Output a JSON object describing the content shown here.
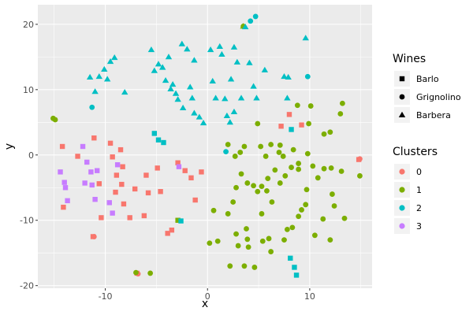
{
  "chart_data": {
    "type": "scatter",
    "xlabel": "x",
    "ylabel": "y",
    "xlim": [
      -16.6,
      16.1
    ],
    "ylim": [
      -20.4,
      23.0
    ],
    "x_ticks": [
      -10,
      0,
      10
    ],
    "y_ticks": [
      -20,
      -10,
      0,
      10,
      20
    ],
    "grid": true,
    "legend_placement": "right",
    "legends": {
      "shape": {
        "title": "Wines",
        "entries": [
          {
            "label": "Barlo",
            "shape": "square"
          },
          {
            "label": "Grignolino",
            "shape": "circle"
          },
          {
            "label": "Barbera",
            "shape": "triangle"
          }
        ]
      },
      "color": {
        "title": "Clusters",
        "entries": [
          {
            "label": "0",
            "color": "#F8766D"
          },
          {
            "label": "1",
            "color": "#7CAE00"
          },
          {
            "label": "2",
            "color": "#00BFC4"
          },
          {
            "label": "3",
            "color": "#C77CFF"
          }
        ]
      }
    },
    "points": [
      [
        "s",
        0,
        -14.2,
        1.3
      ],
      [
        "s",
        0,
        -14.1,
        -8.0
      ],
      [
        "s",
        0,
        -12.7,
        -0.2
      ],
      [
        "s",
        0,
        -11.1,
        2.6
      ],
      [
        "s",
        0,
        -10.6,
        -4.4
      ],
      [
        "s",
        0,
        -10.4,
        -9.6
      ],
      [
        "s",
        0,
        -9.5,
        1.8
      ],
      [
        "s",
        0,
        -9.3,
        -0.3
      ],
      [
        "s",
        0,
        -8.9,
        -3.1
      ],
      [
        "s",
        0,
        -8.5,
        0.8
      ],
      [
        "s",
        0,
        -8.3,
        -1.8
      ],
      [
        "s",
        0,
        -8.4,
        -4.5
      ],
      [
        "s",
        0,
        -9.0,
        -5.7
      ],
      [
        "s",
        0,
        -8.2,
        -7.5
      ],
      [
        "s",
        0,
        -7.6,
        -9.6
      ],
      [
        "s",
        0,
        -7.1,
        -5.2
      ],
      [
        "s",
        0,
        -6.0,
        -3.1
      ],
      [
        "s",
        0,
        -6.2,
        -9.3
      ],
      [
        "s",
        0,
        -5.8,
        -5.8
      ],
      [
        "s",
        0,
        -4.9,
        -2.0
      ],
      [
        "s",
        0,
        -4.6,
        -5.6
      ],
      [
        "s",
        0,
        -3.9,
        -12.0
      ],
      [
        "s",
        0,
        -3.5,
        -11.5
      ],
      [
        "s",
        0,
        -2.9,
        -1.2
      ],
      [
        "s",
        0,
        -2.2,
        -2.4
      ],
      [
        "s",
        0,
        -1.6,
        -3.5
      ],
      [
        "s",
        0,
        -1.2,
        -6.9
      ],
      [
        "s",
        0,
        -0.6,
        -2.6
      ],
      [
        "s",
        0,
        -11.2,
        -12.5
      ],
      [
        "s",
        0,
        7.2,
        4.4
      ],
      [
        "s",
        0,
        8.0,
        6.2
      ],
      [
        "s",
        0,
        9.2,
        4.6
      ],
      [
        "s",
        0,
        14.8,
        -0.7
      ],
      [
        "s",
        0,
        -6.9,
        -18.1
      ],
      [
        "s",
        1,
        -2.9,
        -10.0
      ],
      [
        "s",
        2,
        -5.2,
        3.3
      ],
      [
        "s",
        2,
        -4.8,
        2.3
      ],
      [
        "s",
        2,
        -4.3,
        1.9
      ],
      [
        "s",
        2,
        -2.6,
        -10.1
      ],
      [
        "s",
        2,
        8.2,
        3.9
      ],
      [
        "s",
        2,
        8.1,
        -15.8
      ],
      [
        "s",
        2,
        8.5,
        -17.2
      ],
      [
        "s",
        2,
        8.7,
        -18.4
      ],
      [
        "s",
        3,
        -14.4,
        -2.6
      ],
      [
        "s",
        3,
        -13.9,
        -5.0
      ],
      [
        "s",
        3,
        -12.2,
        1.3
      ],
      [
        "s",
        3,
        -12.0,
        -4.3
      ],
      [
        "s",
        3,
        -11.8,
        -1.1
      ],
      [
        "s",
        3,
        -11.4,
        -2.6
      ],
      [
        "s",
        3,
        -11.3,
        -4.6
      ],
      [
        "s",
        3,
        -11.0,
        -6.8
      ],
      [
        "s",
        3,
        -10.8,
        -2.4
      ],
      [
        "s",
        3,
        -9.6,
        -7.3
      ],
      [
        "s",
        3,
        -9.3,
        -8.9
      ],
      [
        "s",
        3,
        -8.8,
        -1.5
      ],
      [
        "s",
        3,
        -13.7,
        -7.0
      ],
      [
        "s",
        3,
        -14.0,
        -4.2
      ],
      [
        "s",
        3,
        -2.8,
        -1.8
      ],
      [
        "c",
        0,
        14.9,
        -0.6
      ],
      [
        "c",
        0,
        -11.1,
        -12.5
      ],
      [
        "c",
        0,
        -6.8,
        -18.2
      ],
      [
        "c",
        1,
        -15.1,
        5.6
      ],
      [
        "c",
        1,
        -14.9,
        5.4
      ],
      [
        "c",
        1,
        -5.6,
        -18.1
      ],
      [
        "c",
        1,
        -7.0,
        -18.0
      ],
      [
        "c",
        1,
        3.5,
        19.7
      ],
      [
        "c",
        1,
        0.2,
        -13.5
      ],
      [
        "c",
        1,
        1.0,
        -13.2
      ],
      [
        "c",
        1,
        0.6,
        -8.5
      ],
      [
        "c",
        1,
        2.0,
        -9.0
      ],
      [
        "c",
        1,
        2.2,
        -17.0
      ],
      [
        "c",
        1,
        3.6,
        -17.0
      ],
      [
        "c",
        1,
        2.8,
        -12.1
      ],
      [
        "c",
        1,
        3.8,
        -11.3
      ],
      [
        "c",
        1,
        3.0,
        -13.9
      ],
      [
        "c",
        1,
        3.9,
        -12.9
      ],
      [
        "c",
        1,
        4.0,
        -14.1
      ],
      [
        "c",
        1,
        4.6,
        -17.2
      ],
      [
        "c",
        1,
        5.4,
        -13.2
      ],
      [
        "c",
        1,
        6.0,
        -12.8
      ],
      [
        "c",
        1,
        6.2,
        -14.8
      ],
      [
        "c",
        1,
        7.5,
        -13.0
      ],
      [
        "c",
        1,
        7.8,
        -11.4
      ],
      [
        "c",
        1,
        8.3,
        -11.1
      ],
      [
        "c",
        1,
        8.9,
        -9.4
      ],
      [
        "c",
        1,
        9.2,
        -8.4
      ],
      [
        "c",
        1,
        9.6,
        -7.6
      ],
      [
        "c",
        1,
        10.5,
        -12.3
      ],
      [
        "c",
        1,
        11.3,
        -9.8
      ],
      [
        "c",
        1,
        12.0,
        -13.0
      ],
      [
        "c",
        1,
        12.2,
        -6.0
      ],
      [
        "c",
        1,
        12.4,
        -7.8
      ],
      [
        "c",
        1,
        13.4,
        -9.7
      ],
      [
        "c",
        1,
        14.9,
        -3.2
      ],
      [
        "c",
        1,
        2.5,
        -7.2
      ],
      [
        "c",
        1,
        2.8,
        -5.0
      ],
      [
        "c",
        1,
        3.3,
        -2.9
      ],
      [
        "c",
        1,
        3.9,
        -4.3
      ],
      [
        "c",
        1,
        4.5,
        -4.7
      ],
      [
        "c",
        1,
        4.9,
        -5.6
      ],
      [
        "c",
        1,
        5.3,
        -4.8
      ],
      [
        "c",
        1,
        5.8,
        -5.5
      ],
      [
        "c",
        1,
        5.9,
        -3.6
      ],
      [
        "c",
        1,
        6.3,
        -7.2
      ],
      [
        "c",
        1,
        6.6,
        -2.3
      ],
      [
        "c",
        1,
        7.1,
        -4.3
      ],
      [
        "c",
        1,
        7.6,
        -3.2
      ],
      [
        "c",
        1,
        8.2,
        -1.9
      ],
      [
        "c",
        1,
        8.9,
        -1.3
      ],
      [
        "c",
        1,
        8.9,
        -2.2
      ],
      [
        "c",
        1,
        9.7,
        -5.3
      ],
      [
        "c",
        1,
        10.3,
        -1.7
      ],
      [
        "c",
        1,
        10.8,
        -3.5
      ],
      [
        "c",
        1,
        11.4,
        -2.1
      ],
      [
        "c",
        1,
        12.1,
        -2.0
      ],
      [
        "c",
        1,
        13.1,
        -2.5
      ],
      [
        "c",
        1,
        2.0,
        1.6
      ],
      [
        "c",
        1,
        2.7,
        -0.2
      ],
      [
        "c",
        1,
        3.2,
        0.4
      ],
      [
        "c",
        1,
        3.6,
        1.3
      ],
      [
        "c",
        1,
        5.2,
        1.3
      ],
      [
        "c",
        1,
        5.7,
        -0.2
      ],
      [
        "c",
        1,
        6.2,
        1.6
      ],
      [
        "c",
        1,
        7.0,
        0.4
      ],
      [
        "c",
        1,
        7.4,
        -0.2
      ],
      [
        "c",
        1,
        8.4,
        0.8
      ],
      [
        "c",
        1,
        9.8,
        0.2
      ],
      [
        "c",
        1,
        9.9,
        4.8
      ],
      [
        "c",
        1,
        10.1,
        7.5
      ],
      [
        "c",
        1,
        11.4,
        3.2
      ],
      [
        "c",
        1,
        12.0,
        3.5
      ],
      [
        "c",
        1,
        13.0,
        6.3
      ],
      [
        "c",
        1,
        13.2,
        7.9
      ],
      [
        "c",
        1,
        8.8,
        7.6
      ],
      [
        "c",
        1,
        4.9,
        4.8
      ],
      [
        "c",
        1,
        7.1,
        1.5
      ],
      [
        "c",
        1,
        5.3,
        -9.0
      ],
      [
        "c",
        2,
        -11.3,
        7.3
      ],
      [
        "c",
        2,
        1.8,
        0.5
      ],
      [
        "c",
        2,
        4.2,
        20.5
      ],
      [
        "c",
        2,
        4.7,
        21.2
      ],
      [
        "c",
        2,
        9.8,
        12.0
      ],
      [
        "t",
        1,
        3.5,
        19.7
      ],
      [
        "t",
        2,
        -11.5,
        11.9
      ],
      [
        "t",
        2,
        -11.0,
        9.7
      ],
      [
        "t",
        2,
        -10.6,
        12.0
      ],
      [
        "t",
        2,
        -10.1,
        13.1
      ],
      [
        "t",
        2,
        -9.8,
        11.6
      ],
      [
        "t",
        2,
        -9.5,
        14.3
      ],
      [
        "t",
        2,
        -9.1,
        14.9
      ],
      [
        "t",
        2,
        -8.1,
        9.6
      ],
      [
        "t",
        2,
        -5.5,
        16.1
      ],
      [
        "t",
        2,
        -5.2,
        12.9
      ],
      [
        "t",
        2,
        -4.8,
        13.9
      ],
      [
        "t",
        2,
        -4.1,
        11.4
      ],
      [
        "t",
        2,
        -3.8,
        15.0
      ],
      [
        "t",
        2,
        -3.4,
        10.8
      ],
      [
        "t",
        2,
        -3.1,
        9.4
      ],
      [
        "t",
        2,
        -2.9,
        8.5
      ],
      [
        "t",
        2,
        -2.5,
        17.0
      ],
      [
        "t",
        2,
        -2.4,
        7.2
      ],
      [
        "t",
        2,
        -2.0,
        16.2
      ],
      [
        "t",
        2,
        -1.7,
        10.4
      ],
      [
        "t",
        2,
        -1.3,
        6.4
      ],
      [
        "t",
        2,
        -0.8,
        5.8
      ],
      [
        "t",
        2,
        -0.4,
        4.9
      ],
      [
        "t",
        2,
        0.3,
        16.1
      ],
      [
        "t",
        2,
        0.5,
        11.3
      ],
      [
        "t",
        2,
        0.8,
        8.7
      ],
      [
        "t",
        2,
        1.2,
        16.6
      ],
      [
        "t",
        2,
        1.4,
        15.4
      ],
      [
        "t",
        2,
        1.7,
        8.6
      ],
      [
        "t",
        2,
        1.9,
        6.0
      ],
      [
        "t",
        2,
        2.3,
        11.6
      ],
      [
        "t",
        2,
        2.6,
        16.5
      ],
      [
        "t",
        2,
        2.9,
        14.2
      ],
      [
        "t",
        2,
        3.3,
        8.7
      ],
      [
        "t",
        2,
        3.7,
        19.6
      ],
      [
        "t",
        2,
        4.1,
        14.1
      ],
      [
        "t",
        2,
        4.5,
        10.5
      ],
      [
        "t",
        2,
        4.8,
        8.7
      ],
      [
        "t",
        2,
        7.5,
        12.0
      ],
      [
        "t",
        2,
        7.8,
        8.7
      ],
      [
        "t",
        2,
        9.6,
        17.9
      ],
      [
        "t",
        2,
        -3.6,
        10.1
      ],
      [
        "t",
        2,
        -1.5,
        8.7
      ],
      [
        "t",
        2,
        2.6,
        6.6
      ],
      [
        "t",
        2,
        5.6,
        13.0
      ],
      [
        "t",
        2,
        -1.3,
        14.5
      ],
      [
        "t",
        2,
        -4.4,
        13.4
      ],
      [
        "t",
        2,
        2.2,
        5.0
      ],
      [
        "t",
        2,
        7.9,
        11.9
      ]
    ]
  }
}
